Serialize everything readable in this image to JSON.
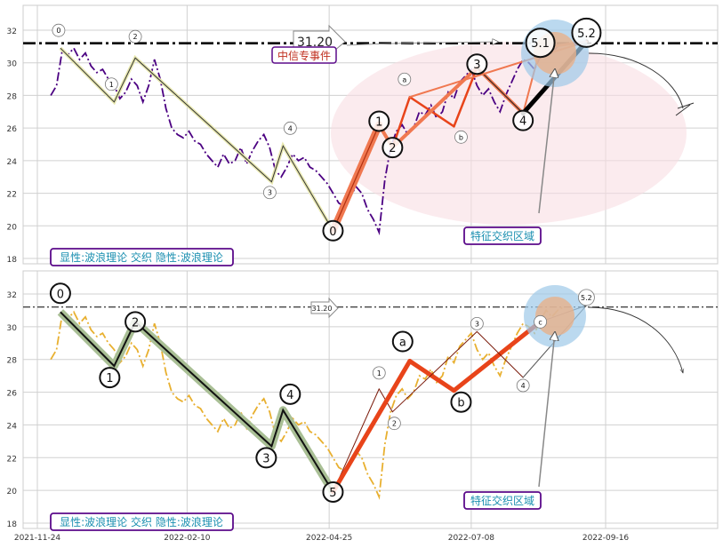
{
  "chart_data": [
    {
      "type": "line",
      "x_dates": [
        "2021-12-01",
        "2021-12-04",
        "2021-12-07",
        "2021-12-10",
        "2021-12-13",
        "2021-12-16",
        "2021-12-19",
        "2021-12-22",
        "2021-12-25",
        "2021-12-28",
        "2021-12-31",
        "2022-01-03",
        "2022-01-06",
        "2022-01-09",
        "2022-01-12",
        "2022-01-15",
        "2022-01-18",
        "2022-01-21",
        "2022-01-24",
        "2022-01-27",
        "2022-01-30",
        "2022-02-02",
        "2022-02-05",
        "2022-02-08",
        "2022-02-11",
        "2022-02-14",
        "2022-02-17",
        "2022-02-20",
        "2022-02-23",
        "2022-02-26",
        "2022-03-01",
        "2022-03-04",
        "2022-03-07",
        "2022-03-10",
        "2022-03-13",
        "2022-03-16",
        "2022-03-19",
        "2022-03-22",
        "2022-03-25",
        "2022-03-28",
        "2022-03-31",
        "2022-04-03",
        "2022-04-06",
        "2022-04-09",
        "2022-04-12",
        "2022-04-15",
        "2022-04-18",
        "2022-04-21",
        "2022-04-24",
        "2022-04-27",
        "2022-04-30",
        "2022-05-03",
        "2022-05-06",
        "2022-05-09",
        "2022-05-12",
        "2022-05-15",
        "2022-05-18",
        "2022-05-21",
        "2022-05-24",
        "2022-05-27",
        "2022-05-30",
        "2022-06-02",
        "2022-06-05",
        "2022-06-08",
        "2022-06-11",
        "2022-06-14",
        "2022-06-17",
        "2022-06-20",
        "2022-06-23",
        "2022-06-26",
        "2022-06-29",
        "2022-07-02",
        "2022-07-05",
        "2022-07-08",
        "2022-07-11",
        "2022-07-14",
        "2022-07-17",
        "2022-07-20",
        "2022-07-23",
        "2022-07-26",
        "2022-07-29",
        "2022-08-01",
        "2022-08-04",
        "2022-08-07",
        "2022-08-10",
        "2022-08-13",
        "2022-08-16",
        "2022-08-19",
        "2022-08-22",
        "2022-08-25",
        "2022-08-28",
        "2022-08-31",
        "2022-09-03",
        "2022-09-06",
        "2022-09-09"
      ],
      "series": [
        {
          "values": [
            28.0,
            28.6,
            30.8,
            30.5,
            30.9,
            30.2,
            30.6,
            29.8,
            29.4,
            29.6,
            29.0,
            28.6,
            27.8,
            28.2,
            29.0,
            28.6,
            27.6,
            28.6,
            30.2,
            29.0,
            27.2,
            26.0,
            25.6,
            25.4,
            25.8,
            25.2,
            25.0,
            24.4,
            24.0,
            23.6,
            24.4,
            23.8,
            24.0,
            24.8,
            23.8,
            24.6,
            25.2,
            25.6,
            24.8,
            23.4,
            23.0,
            23.6,
            24.4,
            24.0,
            24.2,
            23.6,
            23.4,
            23.0,
            22.6,
            22.0,
            21.4,
            21.2,
            21.8,
            22.4,
            22.0,
            21.0,
            20.4,
            19.6,
            22.8,
            24.8,
            25.8,
            26.2,
            25.6,
            26.0,
            27.0,
            26.8,
            27.4,
            26.6,
            27.0,
            28.2,
            27.8,
            28.8,
            29.2,
            29.6,
            28.6,
            28.0,
            28.4,
            27.6,
            27.0,
            28.0,
            28.8,
            29.6,
            30.2,
            30.0,
            29.6,
            30.4,
            31.0,
            30.6,
            31.0,
            31.2
          ]
        }
      ],
      "ylim": [
        17.6,
        33.4
      ],
      "yticks": [
        "18",
        "20",
        "22",
        "24",
        "26",
        "28",
        "30",
        "32"
      ],
      "grid": true,
      "reference_line_value": 31.2,
      "reference_line_label": "31.20",
      "wave_points": [
        {
          "label": "0",
          "date": "2021-12-06",
          "value": 30.9
        },
        {
          "label": "1",
          "date": "2022-01-03",
          "value": 27.6
        },
        {
          "label": "2",
          "date": "2022-01-14",
          "value": 30.3
        },
        {
          "label": "3",
          "date": "2022-03-26",
          "value": 22.7
        },
        {
          "label": "4",
          "date": "2022-04-01",
          "value": 24.9
        },
        {
          "label": "0",
          "date": "2022-04-27",
          "value": 19.7
        },
        {
          "label": "1",
          "date": "2022-05-21",
          "value": 26.2
        },
        {
          "label": "2",
          "date": "2022-05-28",
          "value": 24.8
        },
        {
          "label": "a",
          "date": "2022-06-06",
          "value": 27.9
        },
        {
          "label": "b",
          "date": "2022-06-29",
          "value": 26.1
        },
        {
          "label": "3",
          "date": "2022-07-11",
          "value": 29.7
        },
        {
          "label": "4",
          "date": "2022-08-04",
          "value": 26.9
        },
        {
          "label": "5.1",
          "date": "2022-08-13",
          "value": 30.9
        },
        {
          "label": "5.2",
          "date": "2022-09-06",
          "value": 31.3
        }
      ],
      "annotations": [
        "中信专事件",
        "特征交织区域",
        "显性:波浪理论 交织 隐性:波浪理论"
      ]
    },
    {
      "type": "line",
      "x_dates_ref": "same as panel 1",
      "series": [
        {
          "values": [
            28.0,
            28.6,
            30.8,
            30.5,
            30.9,
            30.2,
            30.6,
            29.8,
            29.4,
            29.6,
            29.0,
            28.6,
            27.8,
            28.2,
            29.0,
            28.6,
            27.6,
            28.6,
            30.2,
            29.0,
            27.2,
            26.0,
            25.6,
            25.4,
            25.8,
            25.2,
            25.0,
            24.4,
            24.0,
            23.6,
            24.4,
            23.8,
            24.0,
            24.8,
            23.8,
            24.6,
            25.2,
            25.6,
            24.8,
            23.4,
            23.0,
            23.6,
            24.4,
            24.0,
            24.2,
            23.6,
            23.4,
            23.0,
            22.6,
            22.0,
            21.4,
            21.2,
            21.8,
            22.4,
            22.0,
            21.0,
            20.4,
            19.6,
            22.8,
            24.8,
            25.8,
            26.2,
            25.6,
            26.0,
            27.0,
            26.8,
            27.4,
            26.6,
            27.0,
            28.2,
            27.8,
            28.8,
            29.2,
            29.6,
            28.6,
            28.0,
            28.4,
            27.6,
            27.0,
            28.0,
            28.8,
            29.6,
            30.2,
            30.0,
            29.6,
            30.4,
            31.0,
            30.6,
            31.0,
            31.2
          ]
        }
      ],
      "ylim": [
        17.6,
        33.4
      ],
      "yticks": [
        "18",
        "20",
        "22",
        "24",
        "26",
        "28",
        "30",
        "32"
      ],
      "xticks": [
        "2021-11-24",
        "2022-02-10",
        "2022-04-25",
        "2022-07-08",
        "2022-09-16"
      ],
      "grid": true,
      "reference_line_value": 31.2,
      "reference_line_label": "31.20",
      "wave_points": [
        {
          "label": "0",
          "date": "2021-12-06",
          "value": 30.9
        },
        {
          "label": "1",
          "date": "2022-01-03",
          "value": 27.6
        },
        {
          "label": "2",
          "date": "2022-01-14",
          "value": 30.3
        },
        {
          "label": "3",
          "date": "2022-03-26",
          "value": 22.7
        },
        {
          "label": "4",
          "date": "2022-04-01",
          "value": 24.9
        },
        {
          "label": "5",
          "date": "2022-04-27",
          "value": 19.9
        },
        {
          "label": "1",
          "date": "2022-05-21",
          "value": 26.2
        },
        {
          "label": "2",
          "date": "2022-05-28",
          "value": 24.8
        },
        {
          "label": "a",
          "date": "2022-06-06",
          "value": 27.9
        },
        {
          "label": "b",
          "date": "2022-06-29",
          "value": 26.1
        },
        {
          "label": "3",
          "date": "2022-07-11",
          "value": 29.7
        },
        {
          "label": "4",
          "date": "2022-08-04",
          "value": 26.9
        },
        {
          "label": "c",
          "date": "2022-08-13",
          "value": 30.3
        },
        {
          "label": "5.2",
          "date": "2022-09-06",
          "value": 31.3
        }
      ],
      "annotations": [
        "特征交织区域",
        "显性:波浪理论 交织 隐性:波浪理论"
      ]
    }
  ],
  "colors": {
    "top_price_line": "#4b0082",
    "bottom_price_line": "#e8b030",
    "impulse_orange": "#e8441a",
    "salmon_wave": "#f07850",
    "pink_ellipse": "#f8dde2",
    "blue_halo": "#9ec9e8",
    "tan_halo": "#e8b08a",
    "green_halo": "#a9bf95",
    "label_text": "#1a8fb0",
    "label_border": "#5b0a8a",
    "event_text": "#c03020"
  }
}
